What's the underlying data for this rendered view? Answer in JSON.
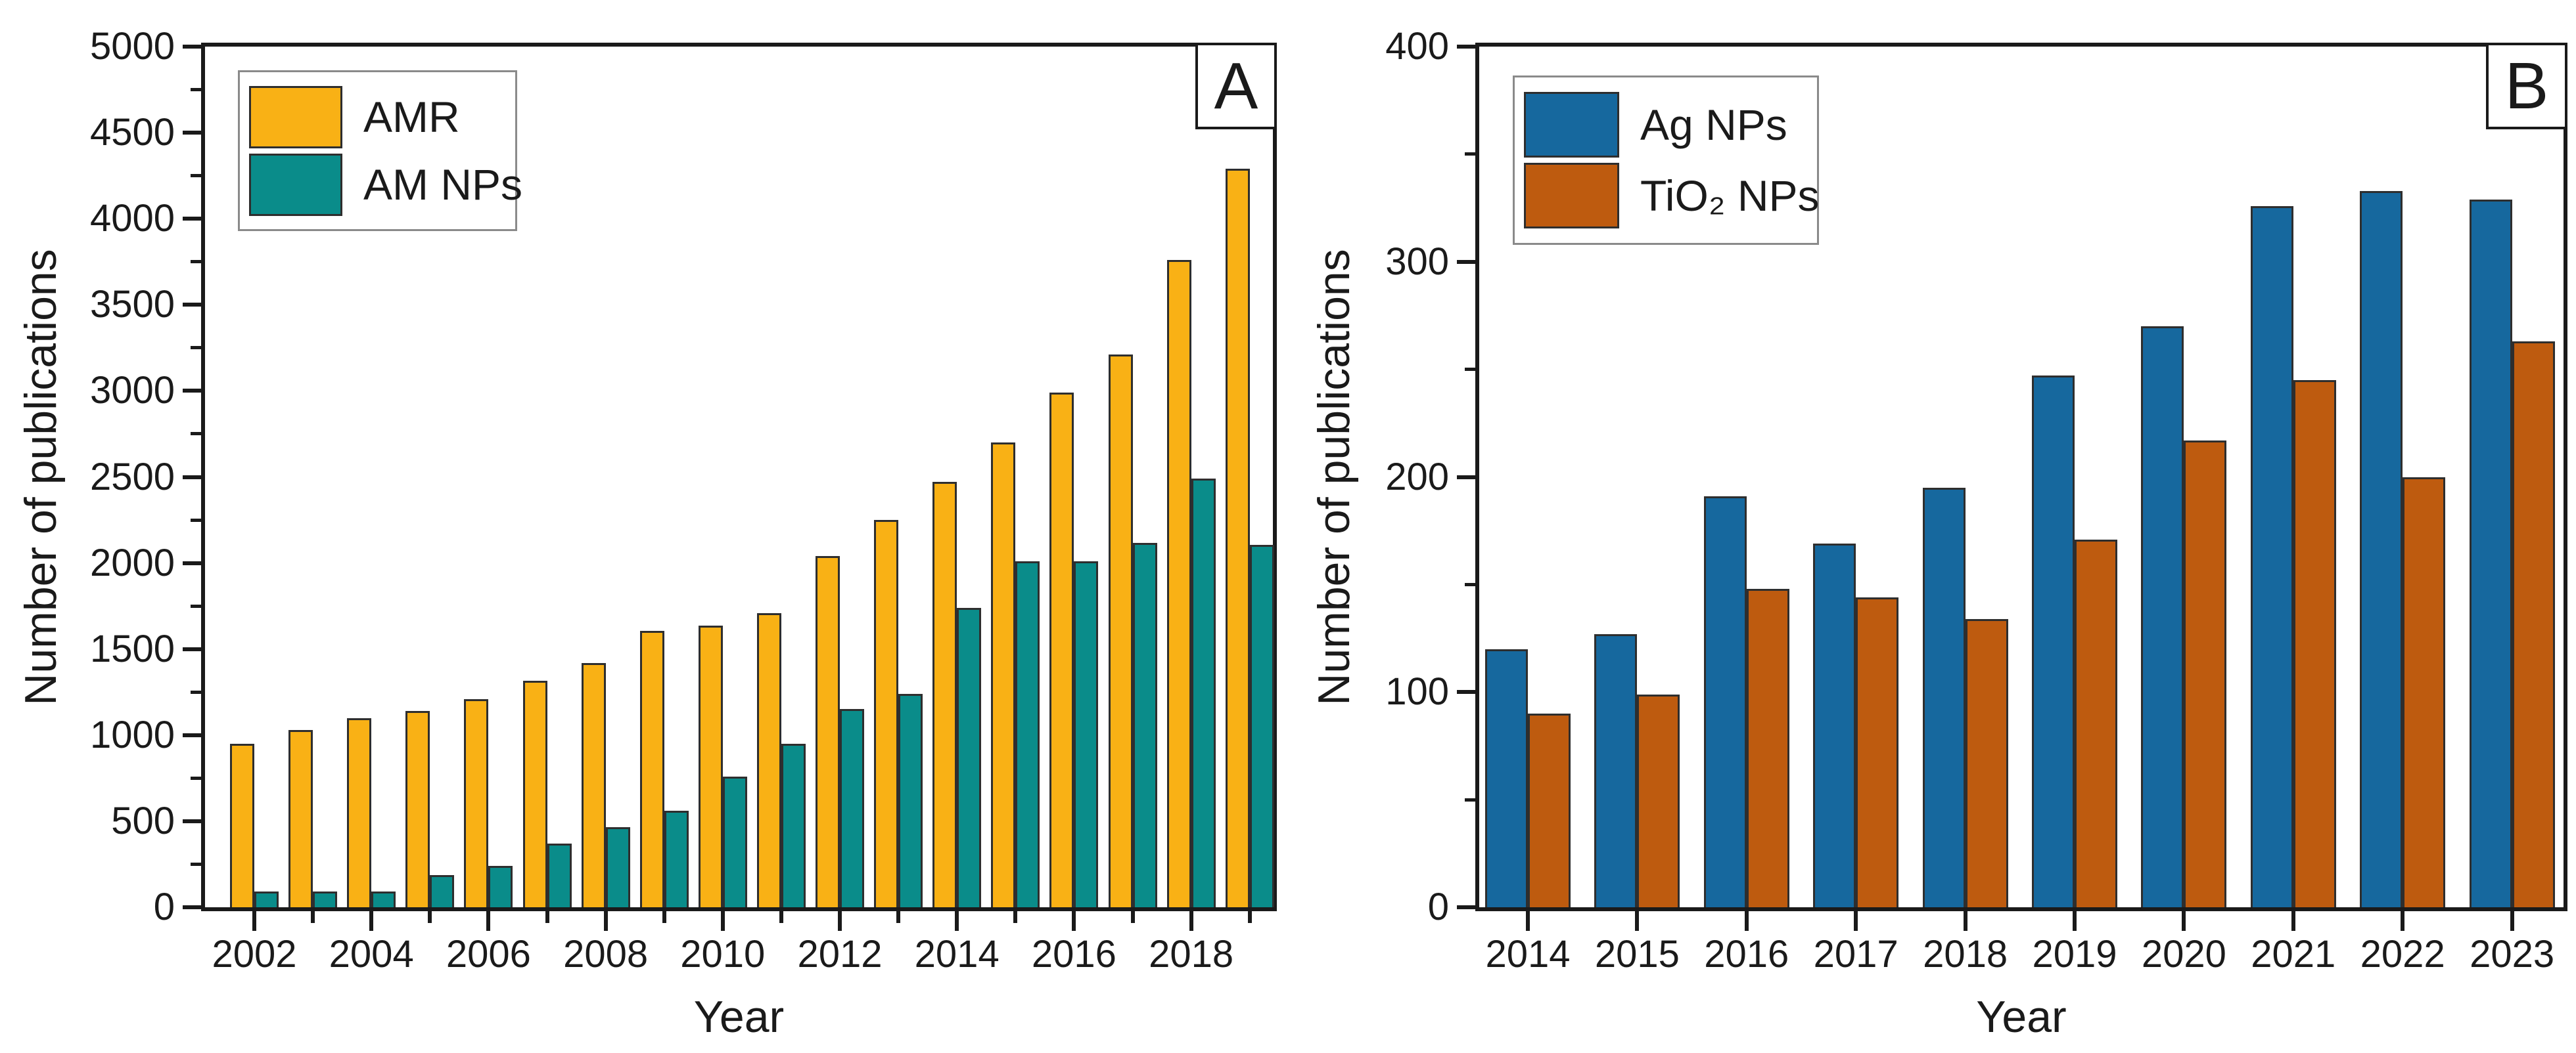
{
  "figure": {
    "background": "#ffffff",
    "axis_color": "#1a1a1a",
    "bar_outline_color": "#2e2e2e",
    "legend_border_color": "#8a8a8a",
    "panels": [
      {
        "corner_label": "A"
      },
      {
        "corner_label": "B"
      }
    ]
  },
  "chart_data": [
    {
      "type": "bar",
      "panel": "A",
      "title": "",
      "xlabel": "Year",
      "ylabel": "Number of publications",
      "categories": [
        "2002",
        "2003",
        "2004",
        "2005",
        "2006",
        "2007",
        "2008",
        "2009",
        "2010",
        "2011",
        "2012",
        "2013",
        "2014",
        "2015",
        "2016",
        "2017",
        "2018",
        "2019"
      ],
      "series": [
        {
          "name": "AMR",
          "color": "#F9B115",
          "values": [
            950,
            1030,
            1100,
            1140,
            1210,
            1315,
            1420,
            1605,
            1635,
            1710,
            2040,
            2250,
            2470,
            2700,
            2990,
            3210,
            3760,
            4290
          ]
        },
        {
          "name": "AM NPs",
          "color": "#0A8C8A",
          "values": [
            90,
            90,
            90,
            185,
            240,
            370,
            465,
            560,
            760,
            950,
            1150,
            1240,
            1740,
            2010,
            2010,
            2115,
            2490,
            2105
          ]
        }
      ],
      "ylim": [
        0,
        5000
      ],
      "y_major_step": 500,
      "y_minor_step": 250,
      "x_label_every": 2,
      "legend_position": "top-left",
      "grid": false
    },
    {
      "type": "bar",
      "panel": "B",
      "title": "",
      "xlabel": "Year",
      "ylabel": "Number of publications",
      "categories": [
        "2014",
        "2015",
        "2016",
        "2017",
        "2018",
        "2019",
        "2020",
        "2021",
        "2022",
        "2023"
      ],
      "series": [
        {
          "name": "Ag NPs",
          "color": "#16689E",
          "values": [
            120,
            127,
            191,
            169,
            195,
            247,
            270,
            326,
            333,
            329
          ]
        },
        {
          "name": "TiO₂ NPs",
          "color": "#BE5B0F",
          "values": [
            90,
            99,
            148,
            144,
            134,
            171,
            217,
            245,
            200,
            263
          ]
        }
      ],
      "ylim": [
        0,
        400
      ],
      "y_major_step": 100,
      "y_minor_step": 50,
      "x_label_every": 1,
      "legend_position": "top-left",
      "grid": false
    }
  ]
}
